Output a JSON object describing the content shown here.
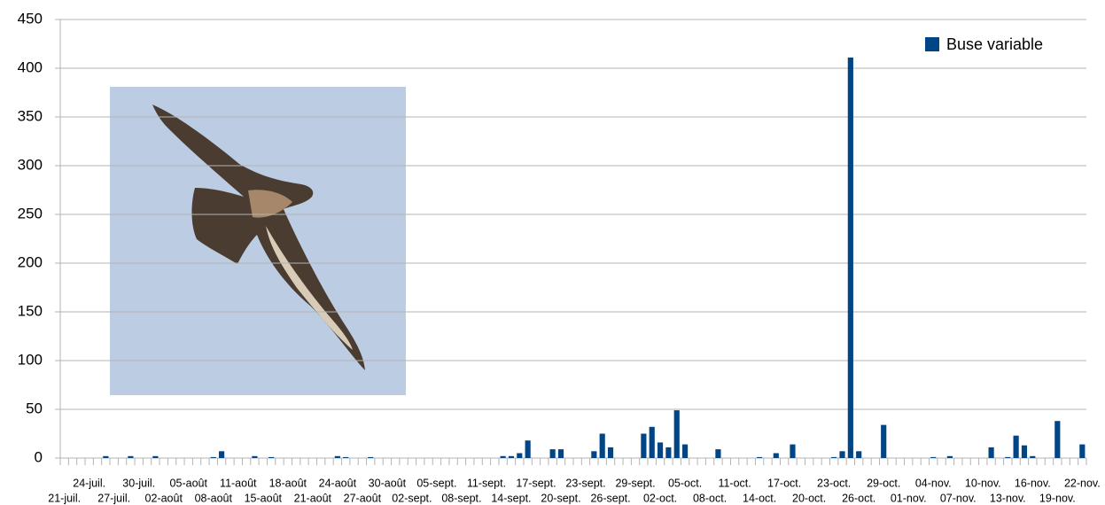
{
  "chart_data": {
    "type": "bar",
    "categories": [
      "21-juil.",
      null,
      null,
      "24-juil.",
      null,
      null,
      "27-juil.",
      null,
      null,
      "30-juil.",
      null,
      null,
      "02-août",
      null,
      null,
      "05-août",
      null,
      null,
      "08-août",
      null,
      null,
      "11-août",
      null,
      null,
      "15-août",
      null,
      null,
      "18-août",
      null,
      null,
      "21-août",
      null,
      null,
      "24-août",
      null,
      null,
      "27-août",
      null,
      null,
      "30-août",
      null,
      null,
      "02-sept.",
      null,
      null,
      "05-sept.",
      null,
      null,
      "08-sept.",
      null,
      null,
      "11-sept.",
      null,
      null,
      "14-sept.",
      null,
      null,
      "17-sept.",
      null,
      null,
      "20-sept.",
      null,
      null,
      "23-sept.",
      null,
      null,
      "26-sept.",
      null,
      null,
      "29-sept.",
      null,
      null,
      "02-oct.",
      null,
      null,
      "05-oct.",
      null,
      null,
      "08-oct.",
      null,
      null,
      "11-oct.",
      null,
      null,
      "14-oct.",
      null,
      null,
      "17-oct.",
      null,
      null,
      "20-oct.",
      null,
      null,
      "23-oct.",
      null,
      null,
      "26-oct.",
      null,
      null,
      "29-oct.",
      null,
      null,
      "01-nov.",
      null,
      null,
      "04-nov.",
      null,
      null,
      "07-nov.",
      null,
      null,
      "10-nov.",
      null,
      null,
      "13-nov.",
      null,
      null,
      "16-nov.",
      null,
      null,
      "19-nov.",
      null,
      null,
      "22-nov."
    ],
    "series": [
      {
        "name": "Buse variable",
        "color": "#004586",
        "values": [
          0,
          0,
          0,
          0,
          0,
          2,
          0,
          0,
          2,
          0,
          0,
          2,
          0,
          0,
          0,
          0,
          0,
          0,
          1,
          7,
          0,
          0,
          0,
          2,
          0,
          1,
          0,
          0,
          0,
          0,
          0,
          0,
          0,
          2,
          1,
          0,
          0,
          1,
          0,
          0,
          0,
          0,
          0,
          0,
          0,
          0,
          0,
          0,
          0,
          0,
          0,
          0,
          0,
          2,
          2,
          5,
          18,
          0,
          0,
          9,
          9,
          0,
          0,
          0,
          7,
          25,
          11,
          0,
          0,
          0,
          25,
          32,
          16,
          11,
          49,
          14,
          0,
          0,
          0,
          9,
          0,
          0,
          0,
          0,
          1,
          0,
          5,
          0,
          14,
          0,
          0,
          0,
          0,
          1,
          7,
          411,
          7,
          0,
          0,
          34,
          0,
          0,
          0,
          0,
          0,
          1,
          0,
          2,
          0,
          0,
          0,
          0,
          11,
          0,
          1,
          23,
          13,
          2,
          0,
          0,
          38,
          0,
          0,
          14
        ]
      }
    ],
    "ylim": [
      0,
      450
    ],
    "yticks": [
      0,
      50,
      100,
      150,
      200,
      250,
      300,
      350,
      400,
      450
    ],
    "grid": true,
    "legend": "top-right"
  }
}
